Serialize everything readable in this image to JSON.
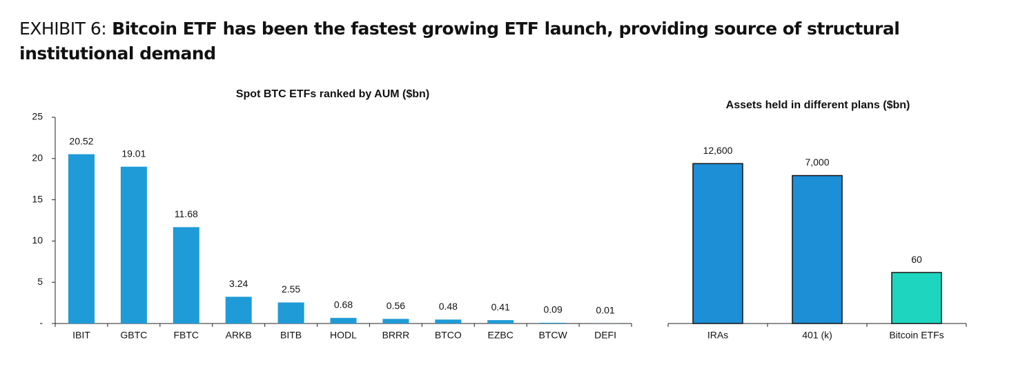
{
  "header": {
    "label": "EXHIBIT 6:",
    "title": "Bitcoin ETF has been the fastest growing ETF launch, providing source of structural institutional demand"
  },
  "chart_data": [
    {
      "type": "bar",
      "title": "Spot BTC ETFs ranked by AUM ($bn)",
      "categories": [
        "IBIT",
        "GBTC",
        "FBTC",
        "ARKB",
        "BITB",
        "HODL",
        "BRRR",
        "BTCO",
        "EZBC",
        "BTCW",
        "DEFI"
      ],
      "values": [
        20.52,
        19.01,
        11.68,
        3.24,
        2.55,
        0.68,
        0.56,
        0.48,
        0.41,
        0.09,
        0.01
      ],
      "value_labels": [
        "20.52",
        "19.01",
        "11.68",
        "3.24",
        "2.55",
        "0.68",
        "0.56",
        "0.48",
        "0.41",
        "0.09",
        "0.01"
      ],
      "color": "#1f9bd7",
      "ylim": [
        0,
        25
      ],
      "yticks": [
        {
          "value": 0,
          "label": "-"
        },
        5,
        10,
        15,
        20,
        25
      ]
    },
    {
      "type": "bar",
      "title": "Assets held in different plans ($bn)",
      "log_scale": true,
      "categories": [
        "IRAs",
        "401 (k)",
        "Bitcoin ETFs"
      ],
      "values": [
        12600,
        7000,
        60
      ],
      "value_labels": [
        "12,600",
        "7,000",
        "60"
      ],
      "colors": [
        "#1c8fd6",
        "#1c8fd6",
        "#1ed6c0"
      ]
    }
  ]
}
